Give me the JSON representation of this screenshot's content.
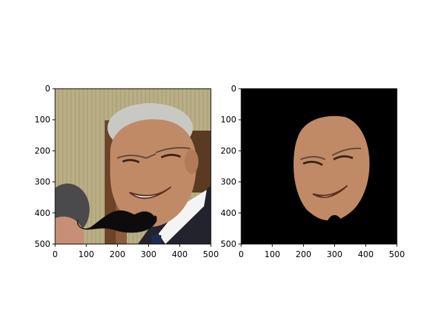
{
  "chart_data": [
    {
      "type": "image",
      "title": "",
      "xlabel": "",
      "ylabel": "",
      "xlim": [
        0,
        500
      ],
      "ylim": [
        500,
        0
      ],
      "xticks": [
        0,
        100,
        200,
        300,
        400,
        500
      ],
      "yticks": [
        0,
        100,
        200,
        300,
        400,
        500
      ],
      "xtick_labels": [
        "0",
        "100",
        "200",
        "300",
        "400",
        "500"
      ],
      "ytick_labels": [
        "0",
        "100",
        "200",
        "300",
        "400",
        "500"
      ],
      "content": "photo with face and mustache overlay",
      "colors": {
        "wall": "#b9ae85",
        "skin": "#c08a66",
        "hair": "#c9c9c4",
        "mustache": "#0d0b0b",
        "suit": "#23232d",
        "shirt": "#f4f4f4"
      }
    },
    {
      "type": "image",
      "title": "",
      "xlabel": "",
      "ylabel": "",
      "xlim": [
        0,
        500
      ],
      "ylim": [
        500,
        0
      ],
      "xticks": [
        0,
        100,
        200,
        300,
        400,
        500
      ],
      "yticks": [
        0,
        100,
        200,
        300,
        400,
        500
      ],
      "xtick_labels": [
        "0",
        "100",
        "200",
        "300",
        "400",
        "500"
      ],
      "ytick_labels": [
        "0",
        "100",
        "200",
        "300",
        "400",
        "500"
      ],
      "content": "segmented face on black background",
      "colors": {
        "background": "#000000",
        "skin": "#c08a66"
      }
    }
  ]
}
